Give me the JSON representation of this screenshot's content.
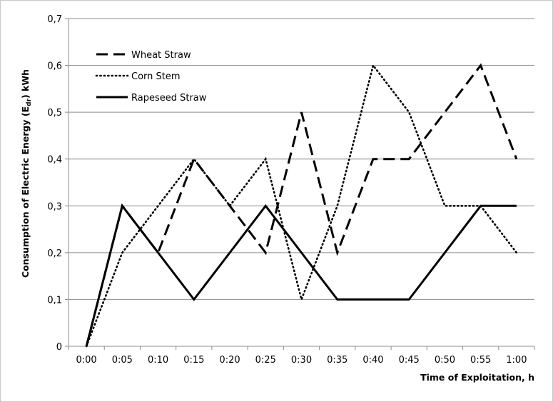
{
  "chart_data": {
    "type": "line",
    "xlabel": "Time of Exploitation, h",
    "ylabel_main": "Consumption of Electric Energy (E",
    "ylabel_sub": "dr",
    "ylabel_end": ") kWh",
    "categories": [
      "0:00",
      "0:05",
      "0:10",
      "0:15",
      "0:20",
      "0:25",
      "0:30",
      "0:35",
      "0:40",
      "0:45",
      "0:50",
      "0:55",
      "1:00"
    ],
    "y_ticks": [
      "0",
      "0,1",
      "0,2",
      "0,3",
      "0,4",
      "0,5",
      "0,6",
      "0,7"
    ],
    "ylim": [
      0,
      0.7
    ],
    "grid": "horizontal",
    "legend_position": "top-left",
    "series": [
      {
        "name": "Wheat Straw",
        "style": "dashed",
        "color": "#000000",
        "values": [
          0,
          0.3,
          0.2,
          0.4,
          0.3,
          0.2,
          0.5,
          0.2,
          0.4,
          0.4,
          0.5,
          0.6,
          0.4
        ]
      },
      {
        "name": "Corn Stem",
        "style": "dotted",
        "color": "#000000",
        "values": [
          0,
          0.2,
          0.3,
          0.4,
          0.3,
          0.4,
          0.1,
          0.3,
          0.6,
          0.5,
          0.3,
          0.3,
          0.2
        ]
      },
      {
        "name": "Rapeseed Straw",
        "style": "solid",
        "color": "#000000",
        "values": [
          0,
          0.3,
          0.2,
          0.1,
          0.2,
          0.3,
          0.2,
          0.1,
          0.1,
          0.1,
          0.2,
          0.3,
          0.3
        ]
      }
    ]
  }
}
